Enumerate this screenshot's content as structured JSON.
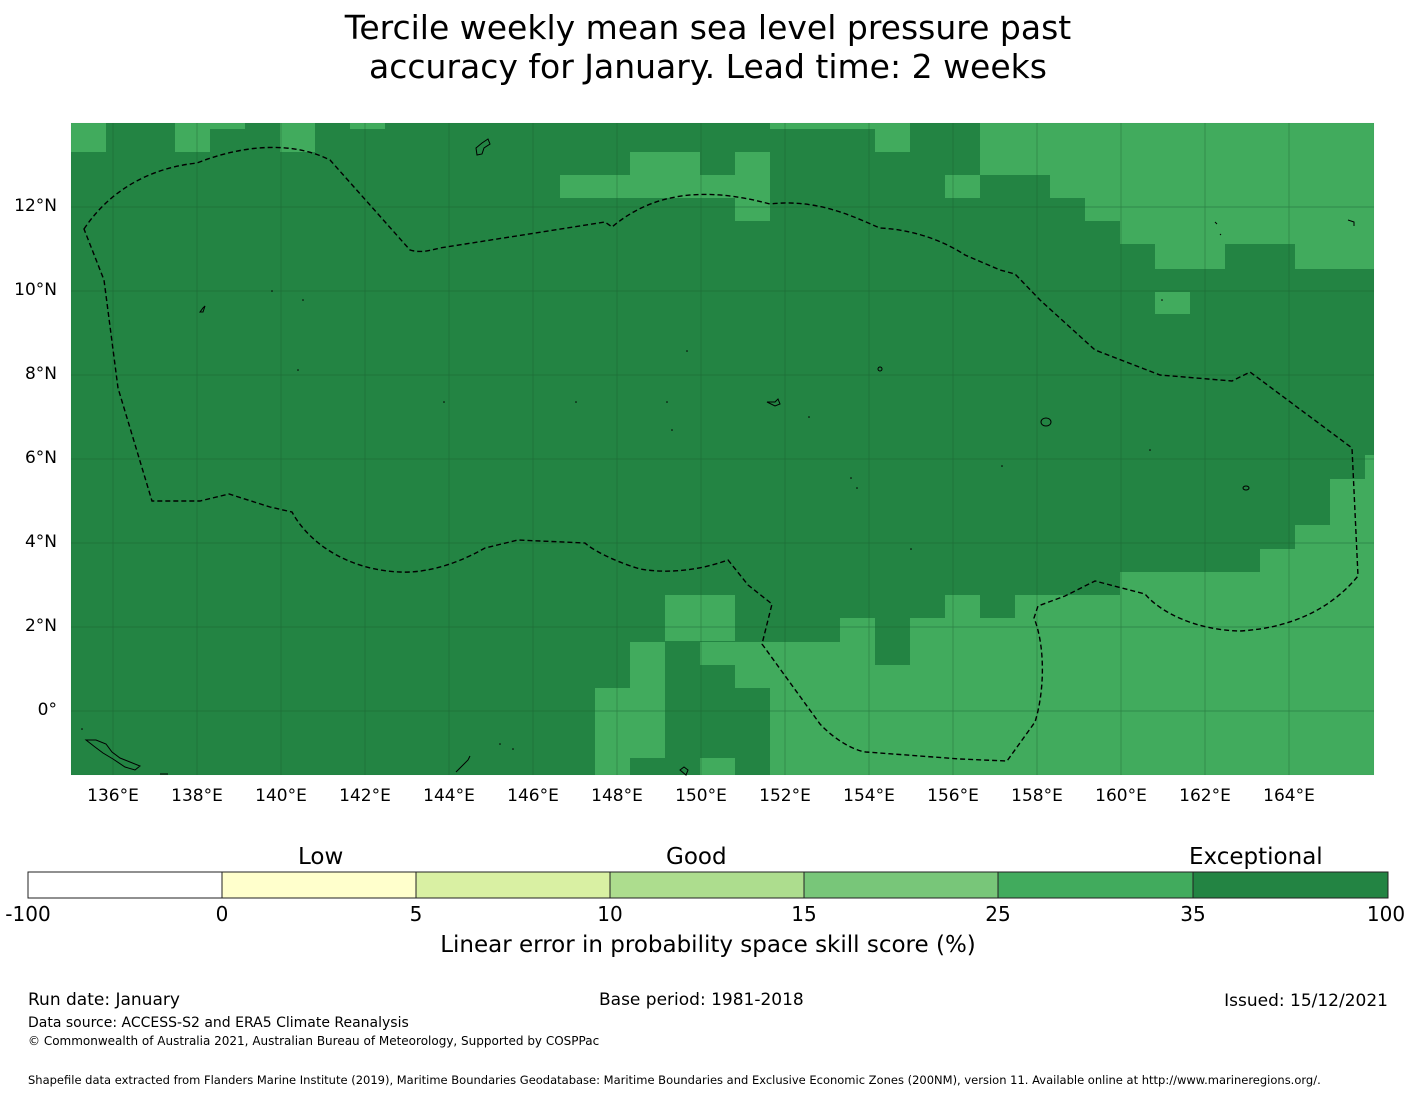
{
  "title_line1": "Tercile weekly mean sea level pressure past",
  "title_line2": "accuracy for January. Lead time: 2 weeks",
  "map": {
    "lon_range": [
      135,
      166
    ],
    "lat_range": [
      -1.5,
      14
    ],
    "x_ticks": [
      "136°E",
      "138°E",
      "140°E",
      "142°E",
      "144°E",
      "146°E",
      "148°E",
      "150°E",
      "152°E",
      "154°E",
      "156°E",
      "158°E",
      "160°E",
      "162°E",
      "164°E"
    ],
    "y_ticks": [
      "12°N",
      "10°N",
      "8°N",
      "6°N",
      "4°N",
      "2°N",
      "0°"
    ],
    "colors": {
      "dark": "#238443",
      "light": "#41ab5d",
      "grid": "#1a5c2f",
      "coast": "#000000"
    }
  },
  "colorbar": {
    "category_labels": [
      "Low",
      "Good",
      "Exceptional"
    ],
    "tick_labels": [
      "-100",
      "0",
      "5",
      "10",
      "15",
      "25",
      "35",
      "100"
    ],
    "colors": [
      "#ffffff",
      "#ffffcc",
      "#d9f0a3",
      "#addd8e",
      "#78c679",
      "#41ab5d",
      "#238443"
    ],
    "title": "Linear error in probability space skill score (%)"
  },
  "footer": {
    "run_date": "Run date: January",
    "base_period": "Base period: 1981-2018",
    "issued": "Issued: 15/12/2021",
    "data_source": "Data source: ACCESS-S2 and ERA5 Climate Reanalysis",
    "copyright": "© Commonwealth of Australia 2021, Australian Bureau of Meteorology, Supported by COSPPac",
    "shapefile_note": "Shapefile data extracted from Flanders Marine Institute (2019), Maritime Boundaries Geodatabase: Maritime Boundaries and Exclusive Economic Zones (200NM), version 11. Available online at http://www.marineregions.org/."
  }
}
